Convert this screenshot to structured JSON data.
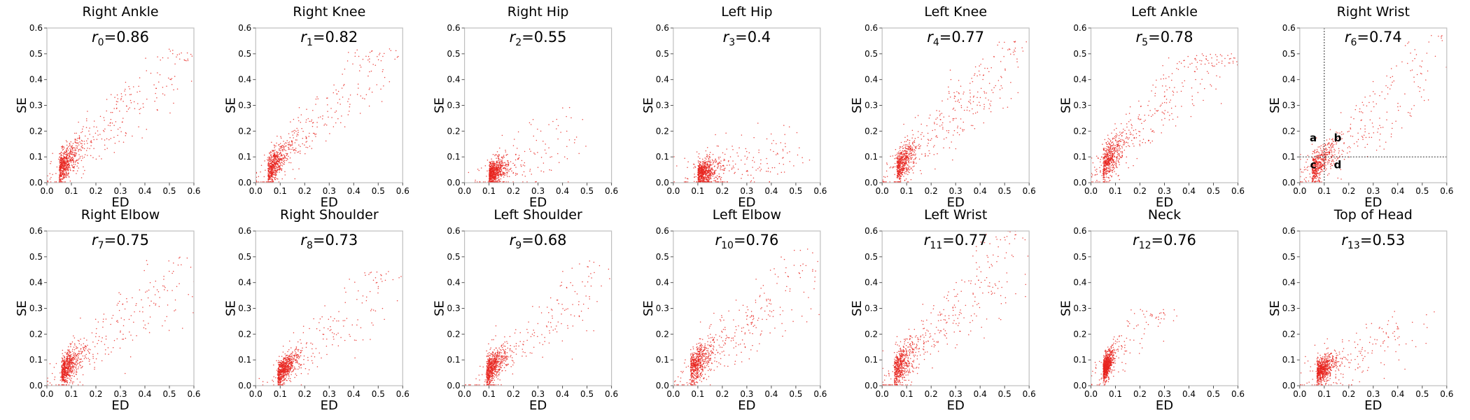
{
  "chart_data": [
    {
      "type": "scatter",
      "title": "Right Ankle",
      "r_symbol": "r",
      "r_index": "0",
      "r_value": "=0.86",
      "xlabel": "ED",
      "ylabel": "SE",
      "xlim": [
        0,
        0.6
      ],
      "ylim": [
        0,
        0.6
      ],
      "xticks": [
        "0.0",
        "0.1",
        "0.2",
        "0.3",
        "0.4",
        "0.5",
        "0.6"
      ],
      "yticks": [
        "0.0",
        "0.1",
        "0.2",
        "0.3",
        "0.4",
        "0.5",
        "0.6"
      ],
      "point_color": "#e8241e",
      "n_points": 800,
      "distribution": {
        "cx": 0.05,
        "cy": 0.05,
        "sx": 0.035,
        "sy": 0.03,
        "trend_slope": 1.0,
        "outlier_fraction": 0.35,
        "outlier_max_x": 0.58,
        "outlier_max_y": 0.52
      },
      "grid": false
    },
    {
      "type": "scatter",
      "title": "Right Knee",
      "r_symbol": "r",
      "r_index": "1",
      "r_value": "=0.82",
      "xlabel": "ED",
      "ylabel": "SE",
      "xlim": [
        0,
        0.6
      ],
      "ylim": [
        0,
        0.6
      ],
      "xticks": [
        "0.0",
        "0.1",
        "0.2",
        "0.3",
        "0.4",
        "0.5",
        "0.6"
      ],
      "yticks": [
        "0.0",
        "0.1",
        "0.2",
        "0.3",
        "0.4",
        "0.5",
        "0.6"
      ],
      "point_color": "#e8241e",
      "n_points": 800,
      "distribution": {
        "cx": 0.05,
        "cy": 0.04,
        "sx": 0.035,
        "sy": 0.03,
        "trend_slope": 1.1,
        "outlier_fraction": 0.35,
        "outlier_max_x": 0.55,
        "outlier_max_y": 0.52
      },
      "grid": false
    },
    {
      "type": "scatter",
      "title": "Right Hip",
      "r_symbol": "r",
      "r_index": "2",
      "r_value": "=0.55",
      "xlabel": "ED",
      "ylabel": "SE",
      "xlim": [
        0,
        0.6
      ],
      "ylim": [
        0,
        0.6
      ],
      "xticks": [
        "0.0",
        "0.1",
        "0.2",
        "0.3",
        "0.4",
        "0.5",
        "0.6"
      ],
      "yticks": [
        "0.0",
        "0.1",
        "0.2",
        "0.3",
        "0.4",
        "0.5",
        "0.6"
      ],
      "point_color": "#e8241e",
      "n_points": 800,
      "distribution": {
        "cx": 0.1,
        "cy": 0.03,
        "sx": 0.03,
        "sy": 0.025,
        "trend_slope": 0.5,
        "outlier_fraction": 0.2,
        "outlier_max_x": 0.45,
        "outlier_max_y": 0.45
      },
      "grid": false
    },
    {
      "type": "scatter",
      "title": "Left Hip",
      "r_symbol": "r",
      "r_index": "3",
      "r_value": "=0.4",
      "xlabel": "ED",
      "ylabel": "SE",
      "xlim": [
        0,
        0.6
      ],
      "ylim": [
        0,
        0.6
      ],
      "xticks": [
        "0.0",
        "0.1",
        "0.2",
        "0.3",
        "0.4",
        "0.5",
        "0.6"
      ],
      "yticks": [
        "0.0",
        "0.1",
        "0.2",
        "0.3",
        "0.4",
        "0.5",
        "0.6"
      ],
      "point_color": "#e8241e",
      "n_points": 800,
      "distribution": {
        "cx": 0.1,
        "cy": 0.03,
        "sx": 0.035,
        "sy": 0.025,
        "trend_slope": 0.3,
        "outlier_fraction": 0.25,
        "outlier_max_x": 0.5,
        "outlier_max_y": 0.3
      },
      "grid": false
    },
    {
      "type": "scatter",
      "title": "Left Knee",
      "r_symbol": "r",
      "r_index": "4",
      "r_value": "=0.77",
      "xlabel": "ED",
      "ylabel": "SE",
      "xlim": [
        0,
        0.6
      ],
      "ylim": [
        0,
        0.6
      ],
      "xticks": [
        "0.0",
        "0.1",
        "0.2",
        "0.3",
        "0.4",
        "0.5",
        "0.6"
      ],
      "yticks": [
        "0.0",
        "0.1",
        "0.2",
        "0.3",
        "0.4",
        "0.5",
        "0.6"
      ],
      "point_color": "#e8241e",
      "n_points": 800,
      "distribution": {
        "cx": 0.06,
        "cy": 0.05,
        "sx": 0.035,
        "sy": 0.03,
        "trend_slope": 1.1,
        "outlier_fraction": 0.4,
        "outlier_max_x": 0.55,
        "outlier_max_y": 0.55
      },
      "grid": false
    },
    {
      "type": "scatter",
      "title": "Left Ankle",
      "r_symbol": "r",
      "r_index": "5",
      "r_value": "=0.78",
      "xlabel": "ED",
      "ylabel": "SE",
      "xlim": [
        0,
        0.6
      ],
      "ylim": [
        0,
        0.6
      ],
      "xticks": [
        "0.0",
        "0.1",
        "0.2",
        "0.3",
        "0.4",
        "0.5",
        "0.6"
      ],
      "yticks": [
        "0.0",
        "0.1",
        "0.2",
        "0.3",
        "0.4",
        "0.5",
        "0.6"
      ],
      "point_color": "#e8241e",
      "n_points": 800,
      "distribution": {
        "cx": 0.05,
        "cy": 0.06,
        "sx": 0.035,
        "sy": 0.035,
        "trend_slope": 1.2,
        "outlier_fraction": 0.4,
        "outlier_max_x": 0.58,
        "outlier_max_y": 0.5
      },
      "grid": false
    },
    {
      "type": "scatter",
      "title": "Right Wrist",
      "r_symbol": "r",
      "r_index": "6",
      "r_value": "=0.74",
      "xlabel": "ED",
      "ylabel": "SE",
      "xlim": [
        0,
        0.6
      ],
      "ylim": [
        0,
        0.6
      ],
      "xticks": [
        "0.0",
        "0.1",
        "0.2",
        "0.3",
        "0.4",
        "0.5",
        "0.6"
      ],
      "yticks": [
        "0.0",
        "0.1",
        "0.2",
        "0.3",
        "0.4",
        "0.5",
        "0.6"
      ],
      "point_color": "#e8241e",
      "n_points": 700,
      "distribution": {
        "cx": 0.05,
        "cy": 0.04,
        "sx": 0.035,
        "sy": 0.03,
        "trend_slope": 1.0,
        "outlier_fraction": 0.4,
        "outlier_max_x": 0.58,
        "outlier_max_y": 0.58
      },
      "threshold_lines": {
        "x": 0.1,
        "y": 0.1,
        "style": "dotted"
      },
      "quadrant_labels": [
        {
          "text": "a",
          "x": 0.055,
          "y": 0.16
        },
        {
          "text": "b",
          "x": 0.155,
          "y": 0.16
        },
        {
          "text": "c",
          "x": 0.055,
          "y": 0.055
        },
        {
          "text": "d",
          "x": 0.155,
          "y": 0.055
        }
      ],
      "grid": false
    },
    {
      "type": "scatter",
      "title": "Right Elbow",
      "r_symbol": "r",
      "r_index": "7",
      "r_value": "=0.75",
      "xlabel": "ED",
      "ylabel": "SE",
      "xlim": [
        0,
        0.6
      ],
      "ylim": [
        0,
        0.6
      ],
      "xticks": [
        "0.0",
        "0.1",
        "0.2",
        "0.3",
        "0.4",
        "0.5",
        "0.6"
      ],
      "yticks": [
        "0.0",
        "0.1",
        "0.2",
        "0.3",
        "0.4",
        "0.5",
        "0.6"
      ],
      "point_color": "#e8241e",
      "n_points": 800,
      "distribution": {
        "cx": 0.06,
        "cy": 0.05,
        "sx": 0.035,
        "sy": 0.03,
        "trend_slope": 0.9,
        "outlier_fraction": 0.3,
        "outlier_max_x": 0.58,
        "outlier_max_y": 0.5
      },
      "grid": false
    },
    {
      "type": "scatter",
      "title": "Right Shoulder",
      "r_symbol": "r",
      "r_index": "8",
      "r_value": "=0.73",
      "xlabel": "ED",
      "ylabel": "SE",
      "xlim": [
        0,
        0.6
      ],
      "ylim": [
        0,
        0.6
      ],
      "xticks": [
        "0.0",
        "0.1",
        "0.2",
        "0.3",
        "0.4",
        "0.5",
        "0.6"
      ],
      "yticks": [
        "0.0",
        "0.1",
        "0.2",
        "0.3",
        "0.4",
        "0.5",
        "0.6"
      ],
      "point_color": "#e8241e",
      "n_points": 800,
      "distribution": {
        "cx": 0.09,
        "cy": 0.04,
        "sx": 0.035,
        "sy": 0.025,
        "trend_slope": 0.9,
        "outlier_fraction": 0.25,
        "outlier_max_x": 0.58,
        "outlier_max_y": 0.45
      },
      "grid": false
    },
    {
      "type": "scatter",
      "title": "Left Shoulder",
      "r_symbol": "r",
      "r_index": "9",
      "r_value": "=0.68",
      "xlabel": "ED",
      "ylabel": "SE",
      "xlim": [
        0,
        0.6
      ],
      "ylim": [
        0,
        0.6
      ],
      "xticks": [
        "0.0",
        "0.1",
        "0.2",
        "0.3",
        "0.4",
        "0.5",
        "0.6"
      ],
      "yticks": [
        "0.0",
        "0.1",
        "0.2",
        "0.3",
        "0.4",
        "0.5",
        "0.6"
      ],
      "point_color": "#e8241e",
      "n_points": 800,
      "distribution": {
        "cx": 0.09,
        "cy": 0.05,
        "sx": 0.035,
        "sy": 0.03,
        "trend_slope": 0.9,
        "outlier_fraction": 0.25,
        "outlier_max_x": 0.6,
        "outlier_max_y": 0.5
      },
      "grid": false
    },
    {
      "type": "scatter",
      "title": "Left Elbow",
      "r_symbol": "r",
      "r_index": "10",
      "r_value": "=0.76",
      "xlabel": "ED",
      "ylabel": "SE",
      "xlim": [
        0,
        0.6
      ],
      "ylim": [
        0,
        0.6
      ],
      "xticks": [
        "0.0",
        "0.1",
        "0.2",
        "0.3",
        "0.4",
        "0.5",
        "0.6"
      ],
      "yticks": [
        "0.0",
        "0.1",
        "0.2",
        "0.3",
        "0.4",
        "0.5",
        "0.6"
      ],
      "point_color": "#e8241e",
      "n_points": 800,
      "distribution": {
        "cx": 0.07,
        "cy": 0.06,
        "sx": 0.04,
        "sy": 0.035,
        "trend_slope": 0.9,
        "outlier_fraction": 0.35,
        "outlier_max_x": 0.6,
        "outlier_max_y": 0.55
      },
      "grid": false
    },
    {
      "type": "scatter",
      "title": "Left Wrist",
      "r_symbol": "r",
      "r_index": "11",
      "r_value": "=0.77",
      "xlabel": "ED",
      "ylabel": "SE",
      "xlim": [
        0,
        0.6
      ],
      "ylim": [
        0,
        0.6
      ],
      "xticks": [
        "0.0",
        "0.1",
        "0.2",
        "0.3",
        "0.4",
        "0.5",
        "0.6"
      ],
      "yticks": [
        "0.0",
        "0.1",
        "0.2",
        "0.3",
        "0.4",
        "0.5",
        "0.6"
      ],
      "point_color": "#e8241e",
      "n_points": 800,
      "distribution": {
        "cx": 0.05,
        "cy": 0.05,
        "sx": 0.035,
        "sy": 0.035,
        "trend_slope": 1.1,
        "outlier_fraction": 0.4,
        "outlier_max_x": 0.6,
        "outlier_max_y": 0.6
      },
      "grid": false
    },
    {
      "type": "scatter",
      "title": "Neck",
      "r_symbol": "r",
      "r_index": "12",
      "r_value": "=0.76",
      "xlabel": "ED",
      "ylabel": "SE",
      "xlim": [
        0,
        0.6
      ],
      "ylim": [
        0,
        0.6
      ],
      "xticks": [
        "0.0",
        "0.1",
        "0.2",
        "0.3",
        "0.4",
        "0.5",
        "0.6"
      ],
      "yticks": [
        "0.0",
        "0.1",
        "0.2",
        "0.3",
        "0.4",
        "0.5",
        "0.6"
      ],
      "point_color": "#e8241e",
      "n_points": 800,
      "distribution": {
        "cx": 0.05,
        "cy": 0.06,
        "sx": 0.02,
        "sy": 0.025,
        "trend_slope": 1.3,
        "outlier_fraction": 0.15,
        "outlier_max_x": 0.3,
        "outlier_max_y": 0.3
      },
      "grid": false
    },
    {
      "type": "scatter",
      "title": "Top of Head",
      "r_symbol": "r",
      "r_index": "13",
      "r_value": "=0.53",
      "xlabel": "ED",
      "ylabel": "SE",
      "xlim": [
        0,
        0.6
      ],
      "ylim": [
        0,
        0.6
      ],
      "xticks": [
        "0.0",
        "0.1",
        "0.2",
        "0.3",
        "0.4",
        "0.5",
        "0.6"
      ],
      "yticks": [
        "0.0",
        "0.1",
        "0.2",
        "0.3",
        "0.4",
        "0.5",
        "0.6"
      ],
      "point_color": "#e8241e",
      "n_points": 800,
      "distribution": {
        "cx": 0.07,
        "cy": 0.05,
        "sx": 0.035,
        "sy": 0.025,
        "trend_slope": 0.5,
        "outlier_fraction": 0.2,
        "outlier_max_x": 0.45,
        "outlier_max_y": 0.3
      },
      "grid": false
    }
  ]
}
